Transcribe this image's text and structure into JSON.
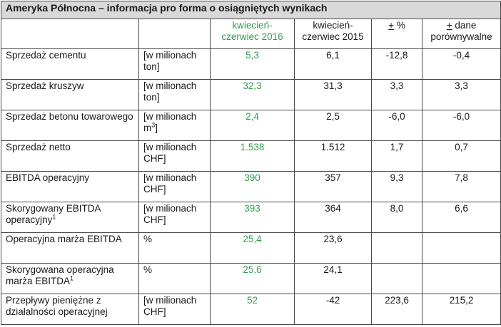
{
  "title": "Ameryka Północna – informacja pro forma o osiągniętych wynikach",
  "headers": {
    "current_line1": "kwiecień-",
    "current_line2": "czerwiec 2016",
    "prior_line1": "kwiecień-",
    "prior_line2": "czerwiec 2015",
    "pct_plusminus": "+",
    "pct_rest": " %",
    "lfl_plusminus": "+",
    "lfl_rest": " dane",
    "lfl_line2": "porównywalne"
  },
  "rows": [
    {
      "label": "Sprzedaż cementu",
      "unit": "[w milionach ton]",
      "current": "5,3",
      "prior": "6,1",
      "pct": "-12,8",
      "lfl": "-0,4"
    },
    {
      "label": "Sprzedaż kruszyw",
      "unit": "[w milionach ton]",
      "current": "32,3",
      "prior": "31,3",
      "pct": "3,3",
      "lfl": "3,3"
    },
    {
      "label": "Sprzedaż betonu towarowego",
      "unit": "[w milionach m",
      "unit_sup": "3",
      "unit_after": "]",
      "current": "2,4",
      "prior": "2,5",
      "pct": "-6,0",
      "lfl": "-6,0"
    },
    {
      "label": "Sprzedaż netto",
      "unit": "[w milionach CHF]",
      "current": "1.538",
      "prior": "1.512",
      "pct": "1,7",
      "lfl": "0,7"
    },
    {
      "label": "EBITDA operacyjny",
      "unit": "[w milionach CHF]",
      "current": "390",
      "prior": "357",
      "pct": "9,3",
      "lfl": "7,8"
    },
    {
      "label": "Skorygowany EBITDA operacyjny",
      "label_sup": "1",
      "unit": "[w milionach CHF]",
      "current": "393",
      "prior": "364",
      "pct": "8,0",
      "lfl": "6,6"
    },
    {
      "label": "Operacyjna marża EBITDA",
      "unit": "%",
      "current": "25,4",
      "prior": "23,6",
      "pct": "",
      "lfl": ""
    },
    {
      "label": "Skorygowana operacyjna marża EBITDA",
      "label_sup": "1",
      "unit": "%",
      "current": "25,6",
      "prior": "24,1",
      "pct": "",
      "lfl": ""
    },
    {
      "label": "Przepływy pieniężne z działalności operacyjnej",
      "unit": "[w milionach CHF]",
      "current": "52",
      "prior": "-42",
      "pct": "223,6",
      "lfl": "215,2"
    }
  ]
}
